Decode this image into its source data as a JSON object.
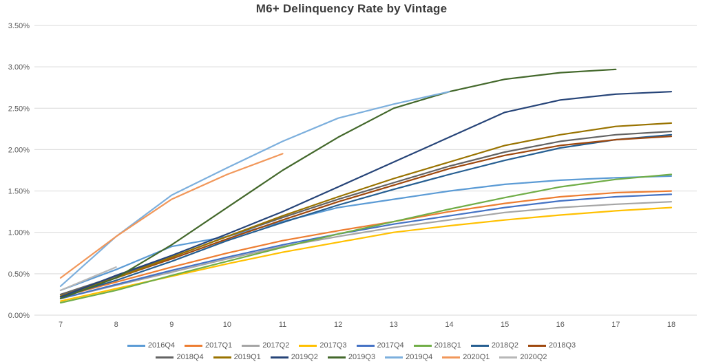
{
  "chart_data": {
    "type": "line",
    "title": "M6+ Delinquency Rate by Vintage",
    "xlabel": "",
    "ylabel": "",
    "x": [
      7,
      8,
      9,
      10,
      11,
      12,
      13,
      14,
      15,
      16,
      17,
      18
    ],
    "x_ticks": [
      "7",
      "8",
      "9",
      "10",
      "11",
      "12",
      "13",
      "14",
      "15",
      "16",
      "17",
      "18"
    ],
    "y_ticks": [
      "0.00%",
      "0.50%",
      "1.00%",
      "1.50%",
      "2.00%",
      "2.50%",
      "3.00%",
      "3.50%"
    ],
    "ylim": [
      0,
      3.5
    ],
    "y_tick_step": 0.5,
    "grid": "horizontal",
    "legend_position": "bottom",
    "series": [
      {
        "name": "2016Q4",
        "color": "#5B9BD5",
        "values": [
          0.3,
          0.55,
          0.83,
          0.95,
          1.13,
          1.3,
          1.4,
          1.5,
          1.58,
          1.63,
          1.66,
          1.68
        ]
      },
      {
        "name": "2017Q1",
        "color": "#ED7D31",
        "values": [
          0.22,
          0.4,
          0.58,
          0.75,
          0.9,
          1.02,
          1.13,
          1.25,
          1.35,
          1.43,
          1.48,
          1.5
        ]
      },
      {
        "name": "2017Q2",
        "color": "#A5A5A5",
        "values": [
          0.2,
          0.36,
          0.52,
          0.68,
          0.83,
          0.95,
          1.06,
          1.15,
          1.24,
          1.3,
          1.34,
          1.37
        ]
      },
      {
        "name": "2017Q3",
        "color": "#FFC000",
        "values": [
          0.17,
          0.32,
          0.47,
          0.62,
          0.76,
          0.88,
          1.0,
          1.08,
          1.15,
          1.21,
          1.26,
          1.3
        ]
      },
      {
        "name": "2017Q4",
        "color": "#4472C4",
        "values": [
          0.2,
          0.37,
          0.54,
          0.7,
          0.85,
          0.98,
          1.1,
          1.2,
          1.3,
          1.38,
          1.43,
          1.46
        ]
      },
      {
        "name": "2018Q1",
        "color": "#70AD47",
        "values": [
          0.15,
          0.3,
          0.48,
          0.65,
          0.82,
          0.98,
          1.13,
          1.28,
          1.42,
          1.55,
          1.64,
          1.7
        ]
      },
      {
        "name": "2018Q2",
        "color": "#255E91",
        "values": [
          0.22,
          0.42,
          0.65,
          0.9,
          1.12,
          1.33,
          1.52,
          1.7,
          1.87,
          2.02,
          2.12,
          2.18
        ]
      },
      {
        "name": "2018Q3",
        "color": "#9E480E",
        "values": [
          0.25,
          0.45,
          0.68,
          0.92,
          1.15,
          1.37,
          1.57,
          1.77,
          1.93,
          2.05,
          2.12,
          2.16
        ]
      },
      {
        "name": "2018Q4",
        "color": "#636363",
        "values": [
          0.25,
          0.47,
          0.7,
          0.95,
          1.18,
          1.4,
          1.6,
          1.8,
          1.97,
          2.1,
          2.18,
          2.22
        ]
      },
      {
        "name": "2019Q1",
        "color": "#997300",
        "values": [
          0.23,
          0.45,
          0.7,
          0.95,
          1.2,
          1.43,
          1.65,
          1.85,
          2.05,
          2.18,
          2.28,
          2.32
        ]
      },
      {
        "name": "2019Q2",
        "color": "#264478",
        "values": [
          0.22,
          0.48,
          0.72,
          0.98,
          1.25,
          1.55,
          1.85,
          2.15,
          2.45,
          2.6,
          2.67,
          2.7
        ]
      },
      {
        "name": "2019Q3",
        "color": "#43682B",
        "values": [
          0.2,
          0.45,
          0.85,
          1.3,
          1.75,
          2.15,
          2.5,
          2.7,
          2.85,
          2.93,
          2.97
        ]
      },
      {
        "name": "2019Q4",
        "color": "#7CAFDD",
        "values": [
          0.35,
          0.95,
          1.45,
          1.78,
          2.1,
          2.38,
          2.55,
          2.7
        ]
      },
      {
        "name": "2020Q1",
        "color": "#F1975A",
        "values": [
          0.45,
          0.95,
          1.4,
          1.7,
          1.95
        ]
      },
      {
        "name": "2020Q2",
        "color": "#B7B7B7",
        "values": [
          0.3,
          0.58
        ]
      }
    ],
    "legend_rows": [
      [
        "2016Q4",
        "2017Q1",
        "2017Q2",
        "2017Q3",
        "2017Q4",
        "2018Q1",
        "2018Q2",
        "2018Q3"
      ],
      [
        "2018Q4",
        "2019Q1",
        "2019Q2",
        "2019Q3",
        "2019Q4",
        "2020Q1",
        "2020Q2"
      ]
    ],
    "style": {
      "background": "#FFFFFF",
      "grid_color": "#D9D9D9",
      "axis_text_color": "#595959",
      "title_color": "#3B3B3B"
    }
  }
}
